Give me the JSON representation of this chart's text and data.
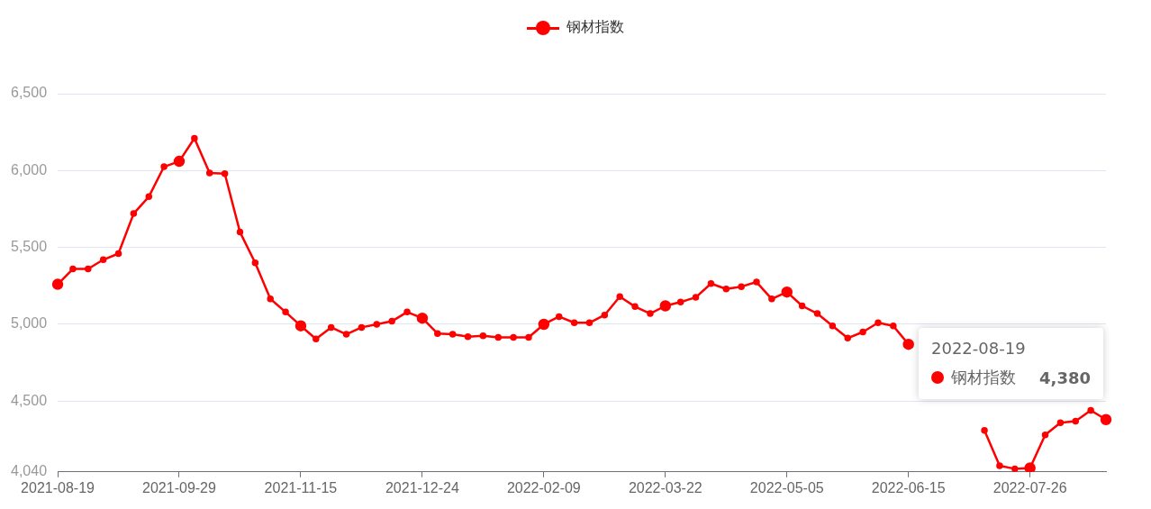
{
  "chart_data": {
    "type": "line",
    "categories": [
      "2021-08-19",
      null,
      null,
      null,
      null,
      null,
      null,
      null,
      "2021-09-29",
      null,
      null,
      null,
      null,
      null,
      null,
      null,
      "2021-11-15",
      null,
      null,
      null,
      null,
      null,
      null,
      null,
      "2021-12-24",
      null,
      null,
      null,
      null,
      null,
      null,
      null,
      "2022-02-09",
      null,
      null,
      null,
      null,
      null,
      null,
      null,
      "2022-03-22",
      null,
      null,
      null,
      null,
      null,
      null,
      null,
      "2022-05-05",
      null,
      null,
      null,
      null,
      null,
      null,
      null,
      "2022-06-15",
      null,
      null,
      null,
      null,
      null,
      null,
      null,
      "2022-07-26",
      null,
      null,
      null,
      null,
      null
    ],
    "series": [
      {
        "name": "钢材指数",
        "color": "#ff0000",
        "values": [
          5260,
          5360,
          5360,
          5420,
          5460,
          5720,
          5830,
          6025,
          6060,
          6210,
          5985,
          5980,
          5600,
          5400,
          5165,
          5080,
          4990,
          4905,
          4980,
          4935,
          4980,
          5000,
          5020,
          5080,
          5040,
          4940,
          4935,
          4920,
          4925,
          4915,
          4915,
          4915,
          5000,
          5050,
          5010,
          5010,
          5060,
          5180,
          5115,
          5070,
          5120,
          5145,
          5175,
          5265,
          5230,
          5245,
          5275,
          5165,
          5210,
          5120,
          5070,
          4990,
          4910,
          4950,
          5010,
          4990,
          4870,
          null,
          null,
          null,
          null,
          4310,
          4080,
          4060,
          4065,
          4280,
          4360,
          4370,
          4440,
          4380
        ]
      }
    ],
    "ylim": [
      4040,
      6500
    ],
    "yticks": [
      {
        "value": 4040,
        "label": "4,040"
      },
      {
        "value": 4500,
        "label": "4,500"
      },
      {
        "value": 5000,
        "label": "5,000"
      },
      {
        "value": 5500,
        "label": "5,500"
      },
      {
        "value": 6000,
        "label": "6,000"
      },
      {
        "value": 6500,
        "label": "6,500"
      }
    ],
    "grid": "y",
    "legend": "top",
    "marker": "circle",
    "line_style": "solid",
    "annotations": [
      "2022-08-19",
      "4,380"
    ]
  }
}
